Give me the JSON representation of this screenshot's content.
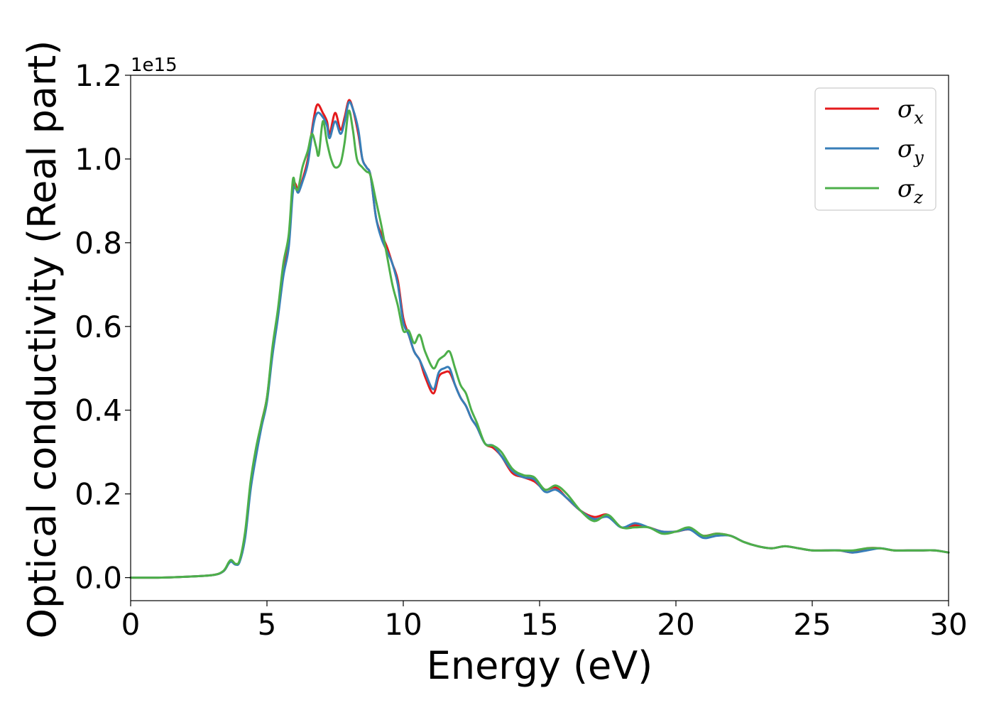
{
  "chart_data": {
    "type": "line",
    "title": "",
    "xlabel": "Energy (eV)",
    "ylabel": "Optical conductivity (Real part)",
    "y_offset_label": "1e15",
    "xlim": [
      0,
      30
    ],
    "ylim": [
      -0.055,
      1.2
    ],
    "xticks": [
      0,
      5,
      10,
      15,
      20,
      25,
      30
    ],
    "yticks": [
      0.0,
      0.2,
      0.4,
      0.6,
      0.8,
      1.0,
      1.2
    ],
    "xtick_labels": [
      "0",
      "5",
      "10",
      "15",
      "20",
      "25",
      "30"
    ],
    "ytick_labels": [
      "0.0",
      "0.2",
      "0.4",
      "0.6",
      "0.8",
      "1.0",
      "1.2"
    ],
    "grid": false,
    "legend_position": "top-right",
    "series": [
      {
        "name": "σx",
        "symbol": "σ",
        "subscript": "x",
        "color": "#e41a1c",
        "points": [
          [
            0,
            0.0
          ],
          [
            1,
            0.0
          ],
          [
            2,
            0.002
          ],
          [
            3,
            0.006
          ],
          [
            3.4,
            0.015
          ],
          [
            3.6,
            0.035
          ],
          [
            3.7,
            0.04
          ],
          [
            3.85,
            0.032
          ],
          [
            4.0,
            0.04
          ],
          [
            4.2,
            0.1
          ],
          [
            4.4,
            0.22
          ],
          [
            4.6,
            0.3
          ],
          [
            4.8,
            0.37
          ],
          [
            5.0,
            0.43
          ],
          [
            5.2,
            0.54
          ],
          [
            5.4,
            0.63
          ],
          [
            5.6,
            0.74
          ],
          [
            5.8,
            0.8
          ],
          [
            5.95,
            0.93
          ],
          [
            6.05,
            0.94
          ],
          [
            6.15,
            0.92
          ],
          [
            6.3,
            0.95
          ],
          [
            6.5,
            1.0
          ],
          [
            6.7,
            1.09
          ],
          [
            6.85,
            1.13
          ],
          [
            7.05,
            1.11
          ],
          [
            7.2,
            1.09
          ],
          [
            7.3,
            1.06
          ],
          [
            7.5,
            1.11
          ],
          [
            7.7,
            1.07
          ],
          [
            7.85,
            1.1
          ],
          [
            8.0,
            1.14
          ],
          [
            8.15,
            1.12
          ],
          [
            8.35,
            1.06
          ],
          [
            8.5,
            1.0
          ],
          [
            8.65,
            0.98
          ],
          [
            8.8,
            0.96
          ],
          [
            9.0,
            0.86
          ],
          [
            9.2,
            0.82
          ],
          [
            9.4,
            0.79
          ],
          [
            9.6,
            0.75
          ],
          [
            9.8,
            0.71
          ],
          [
            10.0,
            0.62
          ],
          [
            10.2,
            0.58
          ],
          [
            10.4,
            0.54
          ],
          [
            10.6,
            0.52
          ],
          [
            10.8,
            0.48
          ],
          [
            11.1,
            0.44
          ],
          [
            11.3,
            0.48
          ],
          [
            11.5,
            0.49
          ],
          [
            11.7,
            0.49
          ],
          [
            11.9,
            0.46
          ],
          [
            12.1,
            0.43
          ],
          [
            12.3,
            0.41
          ],
          [
            12.5,
            0.38
          ],
          [
            12.7,
            0.36
          ],
          [
            13.0,
            0.32
          ],
          [
            13.3,
            0.31
          ],
          [
            13.6,
            0.29
          ],
          [
            14.0,
            0.25
          ],
          [
            14.4,
            0.24
          ],
          [
            14.8,
            0.23
          ],
          [
            15.2,
            0.21
          ],
          [
            15.6,
            0.215
          ],
          [
            16.0,
            0.19
          ],
          [
            16.5,
            0.16
          ],
          [
            17.0,
            0.145
          ],
          [
            17.5,
            0.15
          ],
          [
            18.0,
            0.12
          ],
          [
            18.5,
            0.125
          ],
          [
            19.0,
            0.12
          ],
          [
            19.5,
            0.11
          ],
          [
            20.0,
            0.11
          ],
          [
            20.5,
            0.115
          ],
          [
            21.0,
            0.1
          ],
          [
            21.5,
            0.105
          ],
          [
            22.0,
            0.1
          ],
          [
            22.5,
            0.085
          ],
          [
            23.0,
            0.075
          ],
          [
            23.5,
            0.07
          ],
          [
            24.0,
            0.075
          ],
          [
            24.5,
            0.07
          ],
          [
            25.0,
            0.065
          ],
          [
            25.5,
            0.065
          ],
          [
            26.0,
            0.065
          ],
          [
            26.5,
            0.06
          ],
          [
            27.0,
            0.07
          ],
          [
            27.5,
            0.07
          ],
          [
            28.0,
            0.065
          ],
          [
            28.5,
            0.065
          ],
          [
            29.0,
            0.065
          ],
          [
            29.5,
            0.065
          ],
          [
            30.0,
            0.06
          ]
        ]
      },
      {
        "name": "σy",
        "symbol": "σ",
        "subscript": "y",
        "color": "#377eb8",
        "points": [
          [
            0,
            0.0
          ],
          [
            1,
            0.0
          ],
          [
            2,
            0.002
          ],
          [
            3,
            0.006
          ],
          [
            3.4,
            0.015
          ],
          [
            3.6,
            0.034
          ],
          [
            3.7,
            0.038
          ],
          [
            3.85,
            0.031
          ],
          [
            4.0,
            0.038
          ],
          [
            4.2,
            0.095
          ],
          [
            4.4,
            0.21
          ],
          [
            4.6,
            0.29
          ],
          [
            4.8,
            0.36
          ],
          [
            5.0,
            0.42
          ],
          [
            5.2,
            0.53
          ],
          [
            5.4,
            0.62
          ],
          [
            5.6,
            0.72
          ],
          [
            5.8,
            0.79
          ],
          [
            5.95,
            0.92
          ],
          [
            6.05,
            0.93
          ],
          [
            6.15,
            0.92
          ],
          [
            6.3,
            0.945
          ],
          [
            6.5,
            0.99
          ],
          [
            6.7,
            1.08
          ],
          [
            6.85,
            1.11
          ],
          [
            7.05,
            1.1
          ],
          [
            7.2,
            1.08
          ],
          [
            7.3,
            1.05
          ],
          [
            7.5,
            1.09
          ],
          [
            7.7,
            1.06
          ],
          [
            7.85,
            1.09
          ],
          [
            8.0,
            1.135
          ],
          [
            8.15,
            1.12
          ],
          [
            8.35,
            1.07
          ],
          [
            8.5,
            1.0
          ],
          [
            8.65,
            0.98
          ],
          [
            8.8,
            0.96
          ],
          [
            9.0,
            0.86
          ],
          [
            9.2,
            0.81
          ],
          [
            9.4,
            0.78
          ],
          [
            9.6,
            0.75
          ],
          [
            9.8,
            0.7
          ],
          [
            10.0,
            0.61
          ],
          [
            10.2,
            0.58
          ],
          [
            10.4,
            0.54
          ],
          [
            10.6,
            0.52
          ],
          [
            10.8,
            0.49
          ],
          [
            11.1,
            0.45
          ],
          [
            11.3,
            0.49
          ],
          [
            11.5,
            0.5
          ],
          [
            11.7,
            0.5
          ],
          [
            11.9,
            0.46
          ],
          [
            12.1,
            0.43
          ],
          [
            12.3,
            0.41
          ],
          [
            12.5,
            0.38
          ],
          [
            12.7,
            0.36
          ],
          [
            13.0,
            0.32
          ],
          [
            13.3,
            0.315
          ],
          [
            13.6,
            0.29
          ],
          [
            14.0,
            0.255
          ],
          [
            14.4,
            0.24
          ],
          [
            14.8,
            0.235
          ],
          [
            15.2,
            0.205
          ],
          [
            15.6,
            0.21
          ],
          [
            16.0,
            0.19
          ],
          [
            16.5,
            0.16
          ],
          [
            17.0,
            0.14
          ],
          [
            17.5,
            0.145
          ],
          [
            18.0,
            0.12
          ],
          [
            18.5,
            0.13
          ],
          [
            19.0,
            0.12
          ],
          [
            19.5,
            0.11
          ],
          [
            20.0,
            0.11
          ],
          [
            20.5,
            0.115
          ],
          [
            21.0,
            0.095
          ],
          [
            21.5,
            0.1
          ],
          [
            22.0,
            0.1
          ],
          [
            22.5,
            0.085
          ],
          [
            23.0,
            0.075
          ],
          [
            23.5,
            0.07
          ],
          [
            24.0,
            0.075
          ],
          [
            24.5,
            0.07
          ],
          [
            25.0,
            0.065
          ],
          [
            25.5,
            0.065
          ],
          [
            26.0,
            0.065
          ],
          [
            26.5,
            0.06
          ],
          [
            27.0,
            0.065
          ],
          [
            27.5,
            0.07
          ],
          [
            28.0,
            0.065
          ],
          [
            28.5,
            0.065
          ],
          [
            29.0,
            0.065
          ],
          [
            29.5,
            0.065
          ],
          [
            30.0,
            0.06
          ]
        ]
      },
      {
        "name": "σz",
        "symbol": "σ",
        "subscript": "z",
        "color": "#4daf4a",
        "points": [
          [
            0,
            0.0
          ],
          [
            1,
            0.0
          ],
          [
            2,
            0.002
          ],
          [
            3,
            0.006
          ],
          [
            3.4,
            0.016
          ],
          [
            3.6,
            0.037
          ],
          [
            3.7,
            0.042
          ],
          [
            3.85,
            0.033
          ],
          [
            4.0,
            0.042
          ],
          [
            4.2,
            0.11
          ],
          [
            4.4,
            0.23
          ],
          [
            4.6,
            0.31
          ],
          [
            4.8,
            0.37
          ],
          [
            5.0,
            0.43
          ],
          [
            5.2,
            0.55
          ],
          [
            5.4,
            0.64
          ],
          [
            5.6,
            0.75
          ],
          [
            5.8,
            0.82
          ],
          [
            5.95,
            0.95
          ],
          [
            6.05,
            0.93
          ],
          [
            6.15,
            0.93
          ],
          [
            6.3,
            0.98
          ],
          [
            6.5,
            1.02
          ],
          [
            6.65,
            1.06
          ],
          [
            6.8,
            1.03
          ],
          [
            6.9,
            1.01
          ],
          [
            7.05,
            1.09
          ],
          [
            7.2,
            1.04
          ],
          [
            7.35,
            1.0
          ],
          [
            7.5,
            0.98
          ],
          [
            7.7,
            0.99
          ],
          [
            7.85,
            1.04
          ],
          [
            8.0,
            1.115
          ],
          [
            8.15,
            1.07
          ],
          [
            8.3,
            1.0
          ],
          [
            8.5,
            0.98
          ],
          [
            8.65,
            0.97
          ],
          [
            8.8,
            0.96
          ],
          [
            9.0,
            0.9
          ],
          [
            9.2,
            0.84
          ],
          [
            9.4,
            0.77
          ],
          [
            9.6,
            0.7
          ],
          [
            9.8,
            0.65
          ],
          [
            10.0,
            0.59
          ],
          [
            10.2,
            0.59
          ],
          [
            10.4,
            0.56
          ],
          [
            10.6,
            0.58
          ],
          [
            10.8,
            0.54
          ],
          [
            11.1,
            0.5
          ],
          [
            11.3,
            0.52
          ],
          [
            11.5,
            0.53
          ],
          [
            11.7,
            0.54
          ],
          [
            11.9,
            0.5
          ],
          [
            12.1,
            0.46
          ],
          [
            12.3,
            0.44
          ],
          [
            12.5,
            0.4
          ],
          [
            12.7,
            0.37
          ],
          [
            13.0,
            0.32
          ],
          [
            13.3,
            0.315
          ],
          [
            13.6,
            0.3
          ],
          [
            14.0,
            0.26
          ],
          [
            14.4,
            0.245
          ],
          [
            14.8,
            0.24
          ],
          [
            15.2,
            0.21
          ],
          [
            15.6,
            0.22
          ],
          [
            16.0,
            0.2
          ],
          [
            16.5,
            0.16
          ],
          [
            17.0,
            0.135
          ],
          [
            17.5,
            0.15
          ],
          [
            18.0,
            0.12
          ],
          [
            18.5,
            0.12
          ],
          [
            19.0,
            0.12
          ],
          [
            19.5,
            0.105
          ],
          [
            20.0,
            0.11
          ],
          [
            20.5,
            0.12
          ],
          [
            21.0,
            0.1
          ],
          [
            21.5,
            0.105
          ],
          [
            22.0,
            0.1
          ],
          [
            22.5,
            0.085
          ],
          [
            23.0,
            0.075
          ],
          [
            23.5,
            0.07
          ],
          [
            24.0,
            0.075
          ],
          [
            24.5,
            0.07
          ],
          [
            25.0,
            0.065
          ],
          [
            25.5,
            0.065
          ],
          [
            26.0,
            0.065
          ],
          [
            26.5,
            0.065
          ],
          [
            27.0,
            0.07
          ],
          [
            27.5,
            0.07
          ],
          [
            28.0,
            0.065
          ],
          [
            28.5,
            0.065
          ],
          [
            29.0,
            0.065
          ],
          [
            29.5,
            0.065
          ],
          [
            30.0,
            0.06
          ]
        ]
      }
    ]
  }
}
